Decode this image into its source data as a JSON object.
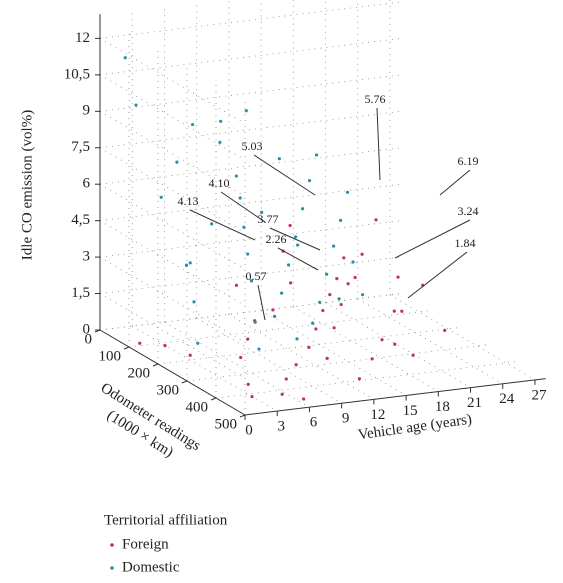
{
  "chart_data": {
    "type": "scatter3d",
    "x_label": "Vehicle age (years)",
    "y_label": "Odometer readings\n(1000 × km)",
    "z_label": "Idle CO emission (vol%)",
    "xlim": [
      0,
      28
    ],
    "ylim": [
      0,
      500
    ],
    "zlim": [
      0,
      13
    ],
    "xticks": [
      0,
      3,
      6,
      9,
      12,
      15,
      18,
      21,
      24,
      27
    ],
    "yticks": [
      0,
      100,
      200,
      300,
      400,
      500
    ],
    "zticks": [
      0,
      {
        "value": 1.5,
        "label": "1,5"
      },
      3,
      {
        "value": 4.5,
        "label": "4,5"
      },
      6,
      {
        "value": 7.5,
        "label": "7,5"
      },
      9,
      {
        "value": 10.5,
        "label": "10,5"
      },
      12
    ],
    "grid": true,
    "legend_title": "Territorial affiliation",
    "series": [
      {
        "name": "Foreign",
        "color": "#c0306d",
        "x": [
          2,
          4,
          3,
          6,
          8,
          10,
          12,
          14,
          16,
          18,
          20,
          22,
          24,
          26,
          9,
          11,
          13,
          15,
          17,
          19,
          12,
          14,
          16,
          18,
          20,
          5,
          7,
          9,
          3,
          1,
          2,
          10,
          13,
          15,
          8,
          6,
          21,
          23,
          11,
          17
        ],
        "y": [
          450,
          480,
          400,
          420,
          380,
          350,
          300,
          250,
          200,
          150,
          100,
          200,
          300,
          150,
          450,
          400,
          350,
          300,
          250,
          200,
          450,
          420,
          380,
          350,
          300,
          300,
          250,
          200,
          200,
          100,
          150,
          100,
          150,
          100,
          300,
          480,
          250,
          100,
          250,
          450
        ],
        "z": [
          0.3,
          0.5,
          0.4,
          0.6,
          0.8,
          1.2,
          1.5,
          1.8,
          2.0,
          2.2,
          2.6,
          1.0,
          0.8,
          1.5,
          1.5,
          2.3,
          2.8,
          3.2,
          3.0,
          3.5,
          0.5,
          1.0,
          1.4,
          0.9,
          1.8,
          0.7,
          1.0,
          1.3,
          0.2,
          0.1,
          0.3,
          2.0,
          3.6,
          4.2,
          2.5,
          0.2,
          2.8,
          4.0,
          3.1,
          1.2
        ]
      },
      {
        "name": "Domestic",
        "color": "#2a8ea8",
        "x": [
          1,
          2,
          3,
          4,
          5,
          6,
          7,
          8,
          9,
          10,
          4,
          6,
          8,
          10,
          12,
          14,
          16,
          11,
          13,
          15,
          17,
          19,
          3,
          5,
          7,
          2,
          9,
          12,
          14,
          18,
          7,
          9,
          12,
          15,
          5,
          1,
          8,
          11,
          13,
          16
        ],
        "y": [
          300,
          250,
          200,
          150,
          350,
          300,
          250,
          200,
          150,
          100,
          400,
          380,
          330,
          280,
          230,
          180,
          130,
          350,
          300,
          250,
          200,
          150,
          100,
          80,
          60,
          50,
          80,
          60,
          100,
          80,
          420,
          400,
          380,
          350,
          200,
          50,
          120,
          150,
          200,
          280
        ],
        "z": [
          1.5,
          2.8,
          4.0,
          3.5,
          2.5,
          3.8,
          4.5,
          5.2,
          6.0,
          6.5,
          1.8,
          2.9,
          3.4,
          4.1,
          4.8,
          5.5,
          6.2,
          3.0,
          3.7,
          4.4,
          5.0,
          5.7,
          6.0,
          7.2,
          8.5,
          9.5,
          7.8,
          8.8,
          7.0,
          6.8,
          2.2,
          2.6,
          3.3,
          3.1,
          5.5,
          11.5,
          9.0,
          5.3,
          4.2,
          3.9
        ]
      }
    ],
    "annotations": [
      {
        "label": "5.76",
        "color": "#2a8ea8"
      },
      {
        "label": "5.03",
        "color": "#2a8ea8"
      },
      {
        "label": "4.10",
        "color": "#2a8ea8"
      },
      {
        "label": "3.77",
        "color": "#2a8ea8"
      },
      {
        "label": "4.13",
        "color": "#2a8ea8"
      },
      {
        "label": "2.26",
        "color": "#c0306d"
      },
      {
        "label": "0.57",
        "color": "#c0306d"
      },
      {
        "label": "6.19",
        "color": "#c0306d"
      },
      {
        "label": "3.24",
        "color": "#c0306d"
      },
      {
        "label": "1.84",
        "color": "#c0306d"
      }
    ]
  }
}
